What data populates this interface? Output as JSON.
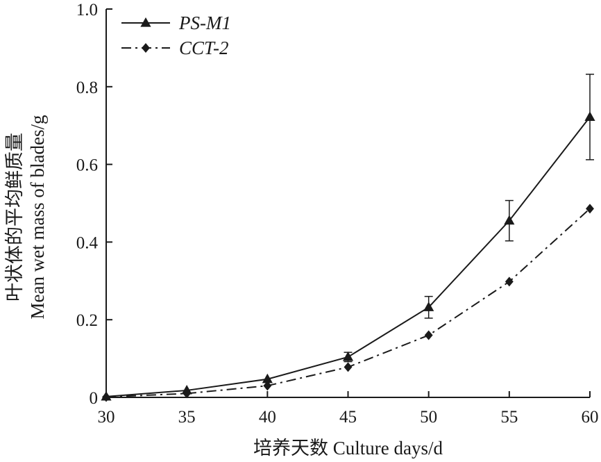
{
  "chart_data": {
    "type": "line",
    "x": [
      30,
      35,
      40,
      45,
      50,
      55,
      60
    ],
    "xlim": [
      30,
      60
    ],
    "ylim": [
      0,
      1.0
    ],
    "xticks": [
      "30",
      "35",
      "40",
      "45",
      "50",
      "55",
      "60"
    ],
    "yticks": [
      "0",
      "0.2",
      "0.4",
      "0.6",
      "0.8",
      "1.0"
    ],
    "xlabel": "培养天数 Culture days/d",
    "ylabel_cn": "叶状体的平均鲜质量",
    "ylabel_en": "Mean wet mass of blades/g",
    "grid": false,
    "legend_position": "top-left",
    "series": [
      {
        "name": "PS-M1",
        "marker": "triangle",
        "line_style": "solid",
        "values": [
          0.002,
          0.018,
          0.047,
          0.104,
          0.232,
          0.455,
          0.722
        ],
        "error": [
          0,
          0,
          0,
          0.012,
          0.028,
          0.052,
          0.11
        ]
      },
      {
        "name": "CCT-2",
        "marker": "diamond",
        "line_style": "dash-dot",
        "values": [
          0.001,
          0.01,
          0.03,
          0.078,
          0.16,
          0.298,
          0.486
        ],
        "error": [
          0,
          0,
          0,
          0,
          0,
          0,
          0
        ]
      }
    ],
    "colors": {
      "line": "#1a1a1a",
      "background": "#ffffff"
    }
  }
}
